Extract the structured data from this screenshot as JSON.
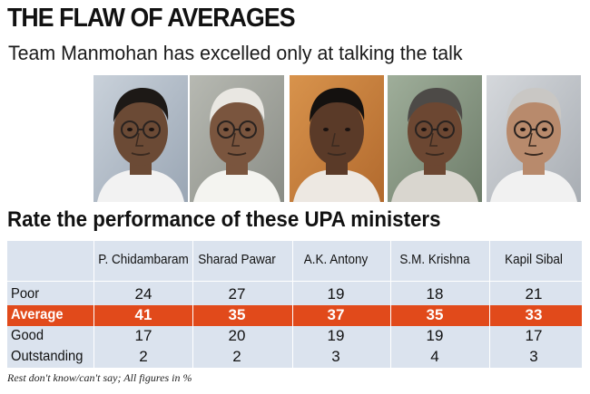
{
  "header": {
    "title": "THE FLAW OF AVERAGES",
    "subtitle": "Team Manmohan has excelled only at talking the talk"
  },
  "section_title": "Rate the performance of these UPA ministers",
  "colors": {
    "highlight_row": "#e14a1b",
    "table_bg": "#dbe3ee",
    "text": "#111111"
  },
  "chart_data": {
    "type": "table",
    "title": "Rate the performance of these UPA ministers",
    "columns": [
      "P. Chidambaram",
      "Sharad Pawar",
      "A.K. Antony",
      "S.M. Krishna",
      "Kapil Sibal"
    ],
    "rows": [
      {
        "label": "Poor",
        "values": [
          24,
          27,
          19,
          18,
          21
        ],
        "highlight": false
      },
      {
        "label": "Average",
        "values": [
          41,
          35,
          37,
          35,
          33
        ],
        "highlight": true
      },
      {
        "label": "Good",
        "values": [
          17,
          20,
          19,
          19,
          17
        ],
        "highlight": false
      },
      {
        "label": "Outstanding",
        "values": [
          2,
          2,
          3,
          4,
          3
        ],
        "highlight": false
      }
    ],
    "note": "Rest don't know/can't say; All figures in %"
  },
  "photos": [
    {
      "alt": "P. Chidambaram portrait"
    },
    {
      "alt": "Sharad Pawar portrait"
    },
    {
      "alt": "A.K. Antony portrait"
    },
    {
      "alt": "S.M. Krishna portrait"
    },
    {
      "alt": "Kapil Sibal portrait"
    }
  ]
}
